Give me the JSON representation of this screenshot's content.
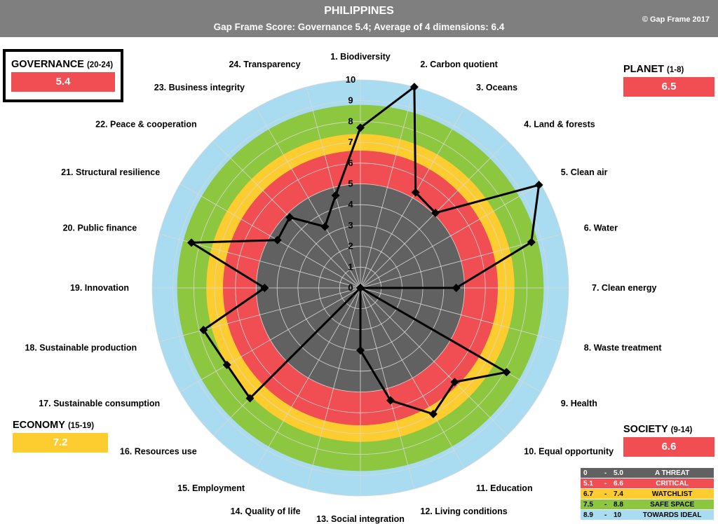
{
  "header": {
    "title": "PHILIPPINES",
    "subtitle": "Gap Frame Score: Governance 5.4;    Average of 4 dimensions: 6.4",
    "copyright": "© Gap Frame 2017"
  },
  "dimensions": {
    "governance": {
      "name": "GOVERNANCE",
      "range": "(20-24)",
      "score": "5.4",
      "color": "#f04e52"
    },
    "planet": {
      "name": "PLANET",
      "range": "(1-8)",
      "score": "6.5",
      "color": "#f04e52"
    },
    "economy": {
      "name": "ECONOMY",
      "range": "(15-19)",
      "score": "7.2",
      "color": "#fdcd2f"
    },
    "society": {
      "name": "SOCIETY",
      "range": "(9-14)",
      "score": "6.6",
      "color": "#f04e52"
    }
  },
  "legend": [
    {
      "from": "0",
      "sep": "-",
      "to": "5.0",
      "label": "A THREAT",
      "color": "#616161",
      "text": "#ffffff"
    },
    {
      "from": "5.1",
      "sep": "-",
      "to": "6.6",
      "label": "CRITICAL",
      "color": "#f04e52",
      "text": "#ffffff"
    },
    {
      "from": "6.7",
      "sep": "-",
      "to": "7.4",
      "label": "WATCHLIST",
      "color": "#fdcd2f",
      "text": "#000000"
    },
    {
      "from": "7.5",
      "sep": "-",
      "to": "8.8",
      "label": "SAFE  SPACE",
      "color": "#8dc63f",
      "text": "#000000"
    },
    {
      "from": "8.9",
      "sep": "-",
      "to": "10",
      "label": "TOWARDS IDEAL",
      "color": "#a9dcf0",
      "text": "#000000"
    }
  ],
  "chart_data": {
    "type": "radar",
    "title": "PHILIPPINES",
    "rlim": [
      0,
      10
    ],
    "ticks": [
      "0",
      "1",
      "2",
      "3",
      "4",
      "5",
      "6",
      "7",
      "8",
      "9",
      "10"
    ],
    "bands": [
      {
        "from": 0,
        "to": 5.0,
        "color": "#616161"
      },
      {
        "from": 5.0,
        "to": 6.6,
        "color": "#f04e52"
      },
      {
        "from": 6.6,
        "to": 7.4,
        "color": "#fdcd2f"
      },
      {
        "from": 7.4,
        "to": 8.8,
        "color": "#8dc63f"
      },
      {
        "from": 8.8,
        "to": 10,
        "color": "#a9dcf0"
      }
    ],
    "categories": [
      "1. Biodiversity",
      "2. Carbon quotient",
      "3. Oceans",
      "4. Land & forests",
      "5. Clean air",
      "6. Water",
      "7. Clean energy",
      "8. Waste treatment",
      "9. Health",
      "10. Equal opportunity",
      "11. Education",
      "12. Living conditions",
      "13. Social integration",
      "14. Quality of life",
      "15. Employment",
      "16. Resources use",
      "17. Sustainable consumption",
      "18. Sustainable production",
      "19. Innovation",
      "20. Public finance",
      "21. Structural resilience",
      "22. Peace & cooperation",
      "23. Business integrity",
      "24. Transparency"
    ],
    "values": [
      7.7,
      10,
      5.3,
      5.1,
      9.9,
      8.5,
      4.6,
      0,
      8.1,
      6.4,
      7.0,
      5.6,
      3.0,
      0,
      0,
      7.5,
      7.4,
      7.8,
      4.6,
      8.4,
      4.6,
      4.8,
      3.4,
      4.6
    ]
  }
}
